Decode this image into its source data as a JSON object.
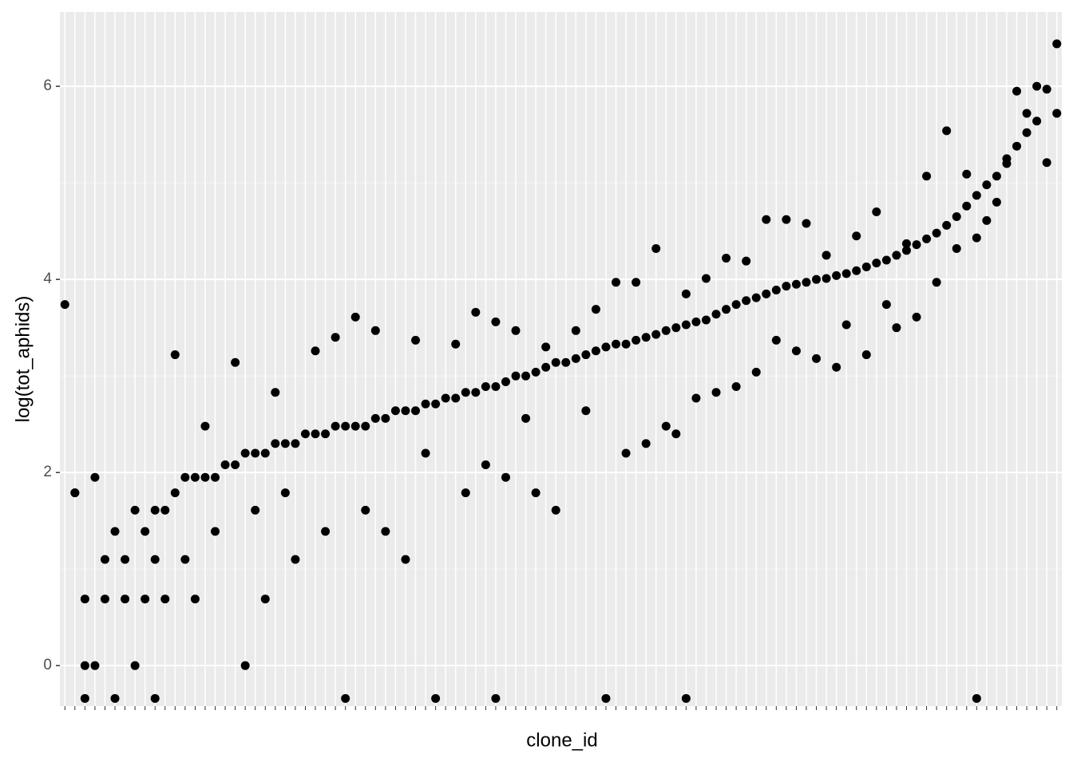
{
  "chart_data": {
    "type": "scatter",
    "xlabel": "clone_id",
    "ylabel": "log(tot_aphids)",
    "xlim": [
      0.5,
      100.5
    ],
    "ylim": [
      -0.42,
      6.77
    ],
    "yticks": [
      0,
      2,
      4,
      6
    ],
    "grid": true,
    "series": [
      {
        "color": "#000000",
        "x": [
          1,
          2,
          3,
          4,
          5,
          6,
          7,
          8,
          9,
          10,
          11,
          12,
          13,
          14,
          15,
          16,
          17,
          18,
          19,
          20,
          21,
          22,
          23,
          24,
          25,
          26,
          27,
          28,
          29,
          30,
          31,
          32,
          33,
          34,
          35,
          36,
          37,
          38,
          39,
          40,
          41,
          42,
          43,
          44,
          45,
          46,
          47,
          48,
          49,
          50,
          51,
          52,
          53,
          54,
          55,
          56,
          57,
          58,
          59,
          60,
          61,
          62,
          63,
          64,
          65,
          66,
          67,
          68,
          69,
          70,
          71,
          72,
          73,
          74,
          75,
          76,
          77,
          78,
          79,
          80,
          81,
          82,
          83,
          84,
          85,
          86,
          87,
          88,
          89,
          90,
          91,
          92,
          93,
          94,
          95,
          96,
          97,
          98,
          99,
          100,
          2,
          3,
          4,
          5,
          6,
          7,
          8,
          9,
          10,
          11,
          12,
          13,
          14,
          15,
          16,
          18,
          19,
          20,
          21,
          22,
          23,
          24,
          26,
          27,
          28,
          29,
          30,
          31,
          32,
          33,
          35,
          36,
          37,
          38,
          40,
          41,
          42,
          43,
          44,
          45,
          46,
          47,
          48,
          49,
          50,
          52,
          53,
          54,
          55,
          56,
          57,
          58,
          59,
          60,
          61,
          62,
          63,
          64,
          65,
          66,
          67,
          68,
          69,
          70,
          71,
          72,
          73,
          74,
          75,
          76,
          77,
          78,
          79,
          80,
          81,
          82,
          83,
          84,
          85,
          86,
          87,
          88,
          89,
          90,
          91,
          92,
          93,
          94,
          95,
          96,
          97,
          98,
          99,
          100,
          3,
          10,
          44,
          63,
          92
        ],
        "y": [
          3.74,
          1.79,
          0,
          1.95,
          0.69,
          1.39,
          1.1,
          1.61,
          1.39,
          1.61,
          1.61,
          1.79,
          1.95,
          1.95,
          1.95,
          1.95,
          2.08,
          2.08,
          2.2,
          2.2,
          2.2,
          2.3,
          2.3,
          2.3,
          2.4,
          2.4,
          2.4,
          2.48,
          2.48,
          2.48,
          2.48,
          2.56,
          2.56,
          2.64,
          2.64,
          2.64,
          2.71,
          2.71,
          2.77,
          2.77,
          2.83,
          2.83,
          2.89,
          2.89,
          2.94,
          3.0,
          3.0,
          3.04,
          3.09,
          3.14,
          3.14,
          3.18,
          3.22,
          3.26,
          3.3,
          3.33,
          3.33,
          3.37,
          3.4,
          3.43,
          3.47,
          3.5,
          3.53,
          3.56,
          3.58,
          3.64,
          3.69,
          3.74,
          3.78,
          3.81,
          3.85,
          3.89,
          3.93,
          3.95,
          3.97,
          4.0,
          4.01,
          4.04,
          4.06,
          4.09,
          4.13,
          4.17,
          4.2,
          4.25,
          4.3,
          4.36,
          4.42,
          4.48,
          4.56,
          4.65,
          4.76,
          4.87,
          4.98,
          5.07,
          5.25,
          5.38,
          5.52,
          5.64,
          5.97,
          6.44,
          1.79,
          0.69,
          0,
          1.1,
          -0.34,
          0.69,
          0,
          0.69,
          1.1,
          0.69,
          3.22,
          1.1,
          0.69,
          2.48,
          1.39,
          3.14,
          0,
          1.61,
          0.69,
          2.83,
          1.79,
          1.1,
          3.26,
          1.39,
          3.4,
          -0.34,
          3.61,
          1.61,
          3.47,
          1.39,
          1.1,
          3.37,
          2.2,
          -0.34,
          3.33,
          1.79,
          3.66,
          2.08,
          3.56,
          1.95,
          3.47,
          2.56,
          1.79,
          3.3,
          1.61,
          3.47,
          2.64,
          3.69,
          -0.34,
          3.97,
          2.2,
          3.97,
          2.3,
          4.32,
          2.48,
          2.4,
          3.85,
          2.77,
          4.01,
          2.83,
          4.22,
          2.89,
          4.19,
          3.04,
          4.62,
          3.37,
          4.62,
          3.26,
          4.58,
          3.18,
          4.25,
          3.09,
          3.53,
          4.45,
          3.22,
          4.7,
          3.74,
          3.5,
          4.37,
          3.61,
          5.07,
          3.97,
          5.54,
          4.32,
          5.09,
          4.43,
          4.61,
          4.8,
          5.2,
          5.95,
          5.72,
          6.0,
          5.21,
          5.72,
          -0.34,
          -0.34,
          -0.34,
          -0.34,
          -0.34
        ]
      }
    ]
  }
}
